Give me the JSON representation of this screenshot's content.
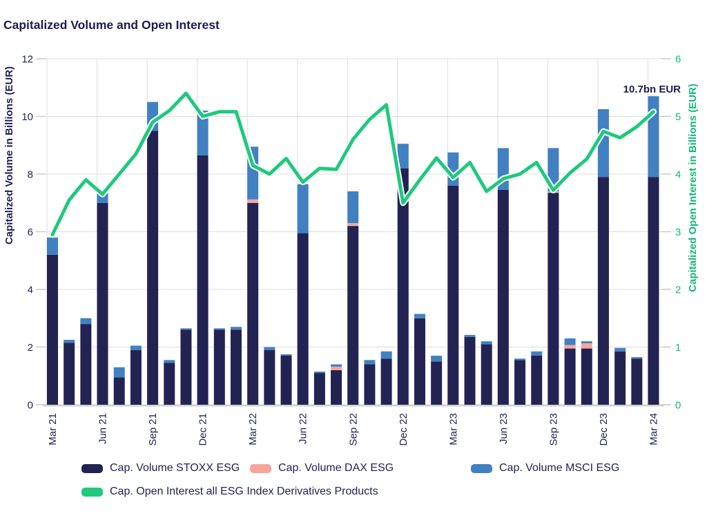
{
  "header": {
    "title": "Capitalized Volume and Open Interest"
  },
  "annotation": {
    "text": "10.7bn EUR"
  },
  "colors": {
    "stoxx_navy": "#232353",
    "dax_pink": "#f8a69d",
    "msci_blue": "#4181c2",
    "oi_green": "#1fc97d",
    "right_axis_green": "#14b878",
    "gridline": "#dcdcdc",
    "baseline": "#d0d0d0",
    "text_navy": "#232353"
  },
  "legend": {
    "items": [
      {
        "label": "Cap. Volume STOXX ESG",
        "color": "#232353"
      },
      {
        "label": "Cap. Volume DAX ESG",
        "color": "#f8a69d"
      },
      {
        "label": "Cap. Volume MSCI ESG",
        "color": "#4181c2"
      },
      {
        "label": "Cap. Open Interest all ESG Index Derivatives Products",
        "color": "#1fc97d"
      }
    ]
  },
  "chart_data": {
    "type": "combo-stacked-bar-line",
    "title": "Capitalized Volume and Open Interest",
    "stacked": true,
    "grid": true,
    "categories": [
      "Mar 21",
      "Apr 21",
      "May 21",
      "Jun 21",
      "Jul 21",
      "Aug 21",
      "Sep 21",
      "Oct 21",
      "Nov 21",
      "Dec 21",
      "Jan 22",
      "Feb 22",
      "Mar 22",
      "Apr 22",
      "May 22",
      "Jun 22",
      "Jul 22",
      "Aug 22",
      "Sep 22",
      "Oct 22",
      "Nov 22",
      "Dec 22",
      "Jan 23",
      "Feb 23",
      "Mar 23",
      "Apr 23",
      "May 23",
      "Jun 23",
      "Jul 23",
      "Aug 23",
      "Sep 23",
      "Oct 23",
      "Nov 23",
      "Dec 23",
      "Jan 24",
      "Feb 24",
      "Mar 24"
    ],
    "x_tick_labels": [
      "Mar 21",
      "Jun 21",
      "Sep 21",
      "Dec 21",
      "Mar 22",
      "Jun 22",
      "Sep 22",
      "Dec 22",
      "Mar 23",
      "Jun 23",
      "Sep 23",
      "Dec 23",
      "Mar 24"
    ],
    "bar_series": [
      {
        "name": "Cap. Volume STOXX ESG",
        "color": "#232353",
        "values": [
          5.2,
          2.15,
          2.8,
          7.0,
          0.95,
          1.9,
          9.5,
          1.45,
          2.6,
          8.65,
          2.6,
          2.6,
          7.0,
          1.9,
          1.7,
          5.95,
          1.1,
          1.2,
          6.2,
          1.4,
          1.6,
          8.2,
          3.0,
          1.5,
          7.6,
          2.35,
          2.1,
          7.45,
          1.55,
          1.7,
          7.35,
          1.95,
          1.95,
          7.9,
          1.85,
          1.6,
          7.9
        ]
      },
      {
        "name": "Cap. Volume DAX ESG",
        "color": "#f8a69d",
        "values": [
          0,
          0,
          0,
          0,
          0,
          0,
          0,
          0,
          0,
          0,
          0,
          0,
          0.12,
          0,
          0,
          0,
          0,
          0.12,
          0.1,
          0,
          0,
          0,
          0,
          0,
          0,
          0,
          0,
          0,
          0,
          0,
          0.05,
          0.12,
          0.18,
          0,
          0,
          0,
          0
        ]
      },
      {
        "name": "Cap. Volume MSCI ESG",
        "color": "#4181c2",
        "values": [
          0.6,
          0.1,
          0.2,
          0.4,
          0.35,
          0.15,
          1.0,
          0.1,
          0.05,
          1.55,
          0.05,
          0.1,
          1.83,
          0.1,
          0.05,
          1.7,
          0.05,
          0.08,
          1.1,
          0.15,
          0.25,
          0.85,
          0.15,
          0.2,
          1.15,
          0.07,
          0.1,
          1.45,
          0.05,
          0.15,
          1.5,
          0.23,
          0.07,
          2.35,
          0.12,
          0.05,
          2.8
        ]
      }
    ],
    "line_series": {
      "name": "Cap. Open Interest all ESG Index Derivatives Products",
      "color": "#1fc97d",
      "axis": "right",
      "values": [
        2.95,
        3.55,
        3.9,
        3.65,
        4.0,
        4.35,
        4.9,
        5.1,
        5.4,
        5.0,
        5.08,
        5.08,
        4.15,
        4.0,
        4.27,
        3.86,
        4.1,
        4.08,
        4.6,
        4.95,
        5.2,
        3.5,
        3.9,
        4.28,
        3.94,
        4.2,
        3.7,
        3.92,
        4.0,
        4.2,
        3.72,
        4.02,
        4.26,
        4.74,
        4.63,
        4.82,
        5.08
      ]
    },
    "left_axis": {
      "label": "Capitalized Volume in Billions (EUR)",
      "min": 0,
      "max": 12,
      "ticks": [
        0,
        2,
        4,
        6,
        8,
        10,
        12
      ]
    },
    "right_axis": {
      "label": "Capitalized Open Interest in Billions (EUR)",
      "min": 0,
      "max": 6,
      "ticks": [
        0,
        1,
        2,
        3,
        4,
        5,
        6
      ]
    },
    "annotation": {
      "text": "10.7bn EUR",
      "category": "Mar 24",
      "value_total": 10.7
    }
  }
}
